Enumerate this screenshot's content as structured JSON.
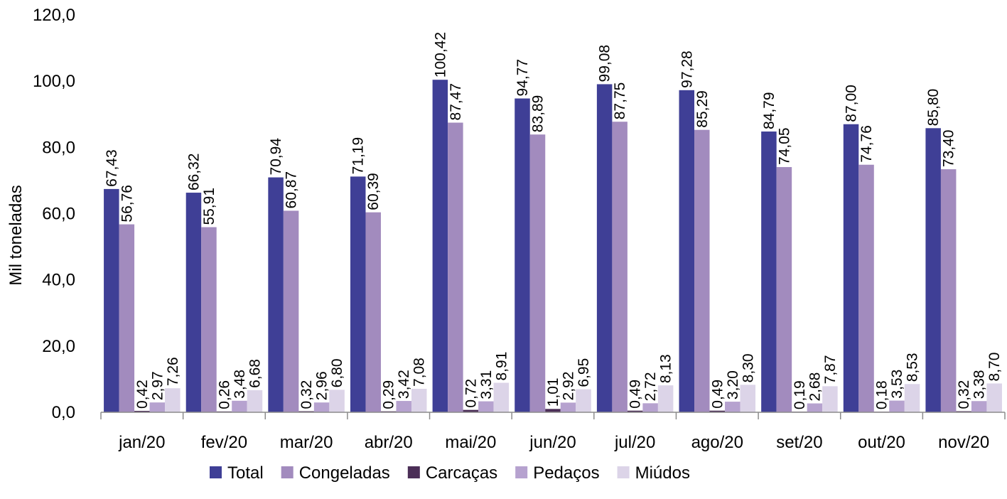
{
  "chart_data": {
    "type": "bar",
    "categories": [
      "jan/20",
      "fev/20",
      "mar/20",
      "abr/20",
      "mai/20",
      "jun/20",
      "jul/20",
      "ago/20",
      "set/20",
      "out/20",
      "nov/20"
    ],
    "series": [
      {
        "name": "Total",
        "color": "#3F3F96",
        "values": [
          67.43,
          66.32,
          70.94,
          71.19,
          100.42,
          94.77,
          99.08,
          97.28,
          84.79,
          87.0,
          85.8
        ],
        "labels": [
          "67,43",
          "66,32",
          "70,94",
          "71,19",
          "100,42",
          "94,77",
          "99,08",
          "97,28",
          "84,79",
          "87,00",
          "85,80"
        ]
      },
      {
        "name": "Congeladas",
        "color": "#A28BBE",
        "values": [
          56.76,
          55.91,
          60.87,
          60.39,
          87.47,
          83.89,
          87.75,
          85.29,
          74.05,
          74.76,
          73.4
        ],
        "labels": [
          "56,76",
          "55,91",
          "60,87",
          "60,39",
          "87,47",
          "83,89",
          "87,75",
          "85,29",
          "74,05",
          "74,76",
          "73,40"
        ]
      },
      {
        "name": "Carcaças",
        "color": "#4B2E57",
        "values": [
          0.42,
          0.26,
          0.32,
          0.29,
          0.72,
          1.01,
          0.49,
          0.49,
          0.19,
          0.18,
          0.32
        ],
        "labels": [
          "0,42",
          "0,26",
          "0,32",
          "0,29",
          "0,72",
          "1,01",
          "0,49",
          "0,49",
          "0,19",
          "0,18",
          "0,32"
        ]
      },
      {
        "name": "Pedaços",
        "color": "#B6A2CF",
        "values": [
          2.97,
          3.48,
          2.96,
          3.42,
          3.31,
          2.92,
          2.72,
          3.2,
          2.68,
          3.53,
          3.38
        ],
        "labels": [
          "2,97",
          "3,48",
          "2,96",
          "3,42",
          "3,31",
          "2,92",
          "2,72",
          "3,20",
          "2,68",
          "3,53",
          "3,38"
        ]
      },
      {
        "name": "Miúdos",
        "color": "#DCD4E8",
        "values": [
          7.26,
          6.68,
          6.8,
          7.08,
          8.91,
          6.95,
          8.13,
          8.3,
          7.87,
          8.53,
          8.7
        ],
        "labels": [
          "7,26",
          "6,68",
          "6,80",
          "7,08",
          "8,91",
          "6,95",
          "8,13",
          "8,30",
          "7,87",
          "8,53",
          "8,70"
        ]
      }
    ],
    "title": "",
    "xlabel": "",
    "ylabel": "Mil toneladas",
    "ylim": [
      0,
      120
    ],
    "yticks": [
      0,
      20,
      40,
      60,
      80,
      100,
      120
    ],
    "ytick_labels": [
      "0,0",
      "20,0",
      "40,0",
      "60,0",
      "80,0",
      "100,0",
      "120,0"
    ],
    "grid": false,
    "legend_position": "bottom-center"
  }
}
